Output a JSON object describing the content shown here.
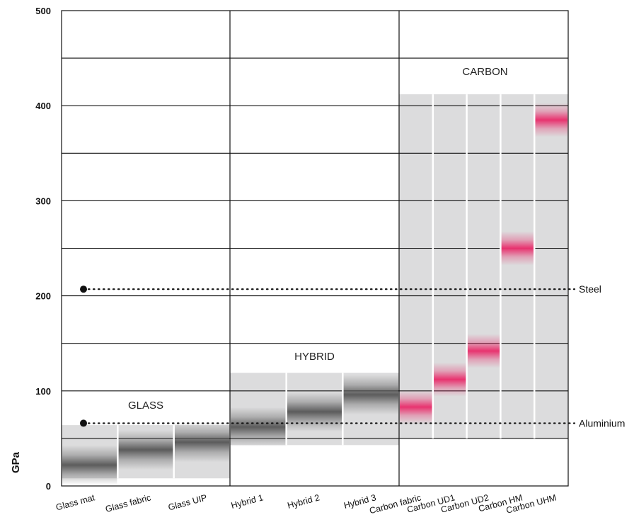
{
  "chart_data": {
    "type": "bar",
    "ylabel": "GPa",
    "ylim": [
      0,
      500
    ],
    "yticks": [
      0,
      100,
      200,
      300,
      400,
      500
    ],
    "grid": true,
    "groups": [
      {
        "name": "GLASS",
        "categories": [
          "Glass mat",
          "Glass fabric",
          "Glass UIP"
        ],
        "range": [
          8,
          64
        ]
      },
      {
        "name": "HYBRID",
        "categories": [
          "Hybrid 1",
          "Hybrid 2",
          "Hybrid 3"
        ],
        "range": [
          43,
          119
        ]
      },
      {
        "name": "CARBON",
        "categories": [
          "Carbon fabric",
          "Carbon UD1",
          "Carbon UD2",
          "Carbon HM",
          "Carbon UHM"
        ],
        "range": [
          50,
          412
        ]
      }
    ],
    "categories": [
      "Glass mat",
      "Glass fabric",
      "Glass UIP",
      "Hybrid 1",
      "Hybrid 2",
      "Hybrid 3",
      "Carbon fabric",
      "Carbon UD1",
      "Carbon UD2",
      "Carbon HM",
      "Carbon UHM"
    ],
    "series": [
      {
        "values": [
          22,
          38,
          46,
          62,
          78,
          96,
          83,
          112,
          142,
          250,
          385
        ]
      }
    ],
    "reference_lines": [
      {
        "label": "Steel",
        "value": 207
      },
      {
        "label": "Aluminium",
        "value": 66
      }
    ],
    "colors": {
      "range_band": "#dcdcdd",
      "glass_hybrid_band": "#555555",
      "carbon_band": "#e8336f",
      "grid": "#111111"
    }
  }
}
